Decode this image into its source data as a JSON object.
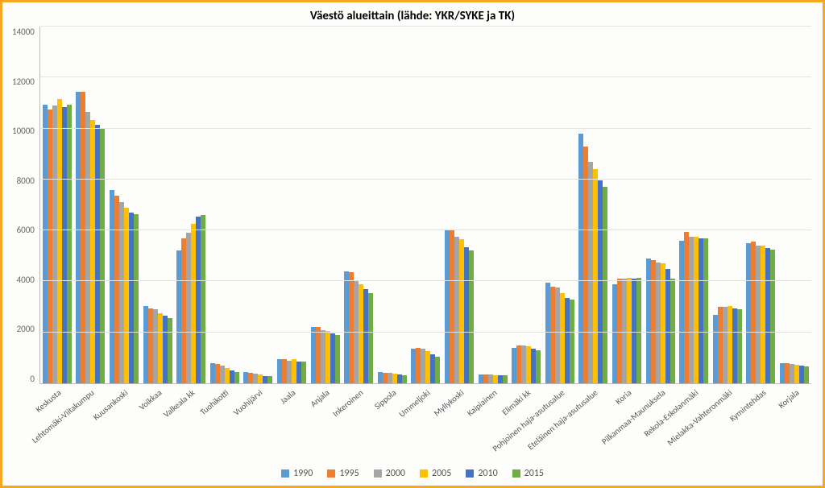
{
  "chart": {
    "type": "bar",
    "title": "Väestö alueittain (lähde: YKR/SYKE ja TK)",
    "title_fontsize": 15,
    "label_fontsize": 11,
    "background_color": "#fdfdfb",
    "frame_border_color": "#f5a623",
    "grid_color": "#e4e4e0",
    "axis_color": "#bbbbbb",
    "ylim": [
      0,
      14000
    ],
    "ytick_step": 2000,
    "yticks": [
      "14000",
      "12000",
      "10000",
      "8000",
      "6000",
      "4000",
      "2000",
      "0"
    ],
    "series": [
      {
        "name": "1990",
        "color": "#5b9bd5"
      },
      {
        "name": "1995",
        "color": "#ed7d31"
      },
      {
        "name": "2000",
        "color": "#a5a5a5"
      },
      {
        "name": "2005",
        "color": "#ffc000"
      },
      {
        "name": "2010",
        "color": "#4472c4"
      },
      {
        "name": "2015",
        "color": "#70ad47"
      }
    ],
    "categories": [
      "Keskusta",
      "Lehtomäki-Viitakumpu",
      "Kuusankoski",
      "Voikkaa",
      "Valkeala kk",
      "Tuohikotti",
      "Vuohijärvi",
      "Jaala",
      "Anjala",
      "Inkeroinen",
      "Sippola",
      "Ummeljoki",
      "Myllykoski",
      "Kaipiainen",
      "Elimäki kk",
      "Pohjoinen haja-asutusalue",
      "Eteläinen haja-asutusalue",
      "Koria",
      "Pilkanmaa-Maunuksela",
      "Rekola-Eskolanmäki",
      "Mielakka-Vahteronmäki",
      "Kymintehdas",
      "Korjala"
    ],
    "data": [
      [
        10950,
        10750,
        10900,
        11150,
        10850,
        10950
      ],
      [
        11450,
        11450,
        10650,
        10350,
        10150,
        10000
      ],
      [
        7600,
        7350,
        7100,
        6900,
        6700,
        6650
      ],
      [
        3050,
        2950,
        2900,
        2750,
        2650,
        2550
      ],
      [
        5200,
        5700,
        5900,
        6250,
        6550,
        6600
      ],
      [
        800,
        750,
        700,
        600,
        500,
        450
      ],
      [
        450,
        400,
        380,
        350,
        300,
        280
      ],
      [
        950,
        950,
        900,
        950,
        850,
        850
      ],
      [
        2200,
        2200,
        2100,
        2050,
        1950,
        1900
      ],
      [
        4400,
        4350,
        4000,
        3900,
        3700,
        3550
      ],
      [
        450,
        420,
        400,
        380,
        350,
        330
      ],
      [
        1350,
        1400,
        1350,
        1250,
        1150,
        1050
      ],
      [
        6050,
        6050,
        5750,
        5650,
        5350,
        5200
      ],
      [
        350,
        350,
        340,
        330,
        320,
        310
      ],
      [
        1400,
        1500,
        1500,
        1450,
        1350,
        1300
      ],
      [
        3950,
        3800,
        3750,
        3550,
        3350,
        3300
      ],
      [
        9800,
        9300,
        8700,
        8400,
        7950,
        7700
      ],
      [
        3900,
        4100,
        4100,
        4150,
        4100,
        4150
      ],
      [
        4900,
        4850,
        4750,
        4700,
        4500,
        4100
      ],
      [
        5600,
        5950,
        5750,
        5750,
        5700,
        5700
      ],
      [
        2700,
        3000,
        3000,
        3050,
        2950,
        2900
      ],
      [
        5500,
        5550,
        5400,
        5400,
        5300,
        5250
      ],
      [
        800,
        800,
        750,
        730,
        700,
        650
      ]
    ]
  }
}
